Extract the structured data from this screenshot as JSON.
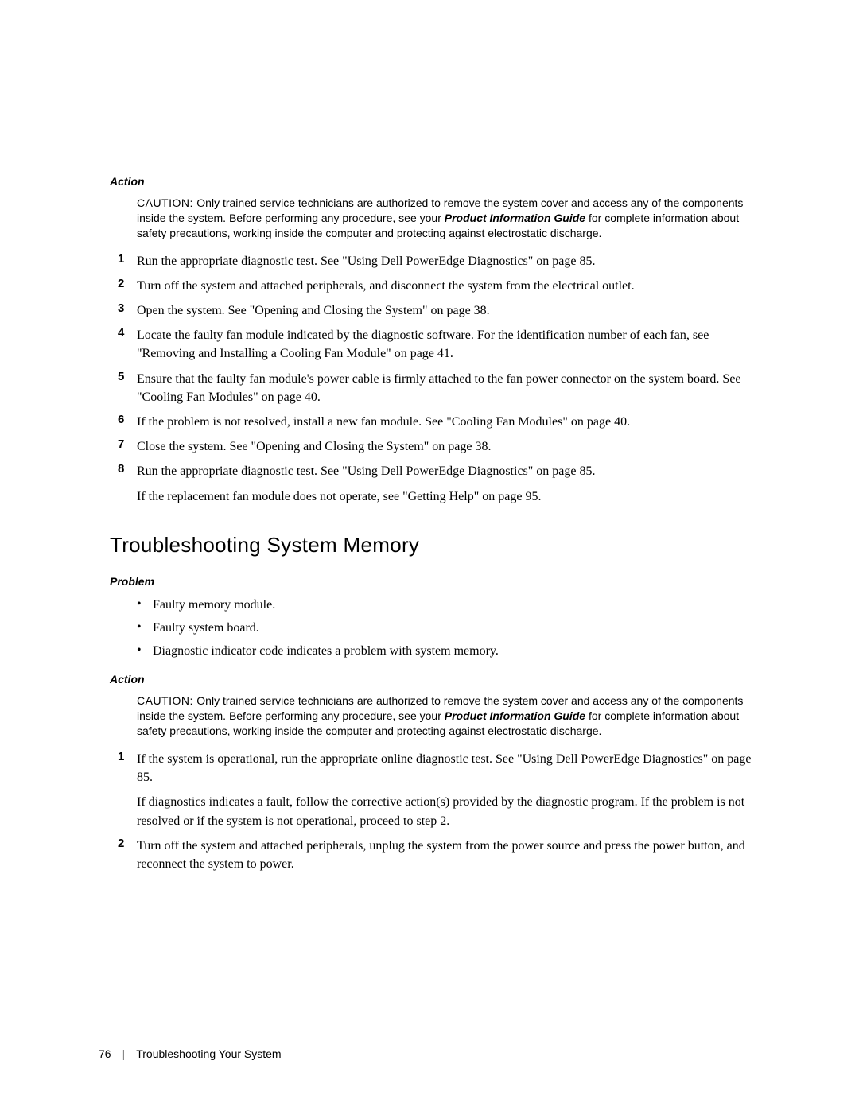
{
  "section1": {
    "label": "Action",
    "caution": {
      "prefix": "CAUTION: ",
      "text_a": "Only trained service technicians are authorized to remove the system cover and access any of the components inside the system. Before performing any procedure, see your ",
      "pig": "Product Information Guide",
      "text_b": " for complete information about safety precautions, working inside the computer and protecting against electrostatic discharge."
    },
    "steps": [
      {
        "n": "1",
        "t": "Run the appropriate diagnostic test. See \"Using Dell PowerEdge Diagnostics\" on page 85."
      },
      {
        "n": "2",
        "t": "Turn off the system and attached peripherals, and disconnect the system from the electrical outlet."
      },
      {
        "n": "3",
        "t": "Open the system. See \"Opening and Closing the System\" on page 38."
      },
      {
        "n": "4",
        "t": "Locate the faulty fan module indicated by the diagnostic software. For the identification number of each fan, see \"Removing and Installing a Cooling Fan Module\" on page 41."
      },
      {
        "n": "5",
        "t": "Ensure that the faulty fan module's power cable is firmly attached to the fan power connector on the system board. See \"Cooling Fan Modules\" on page 40."
      },
      {
        "n": "6",
        "t": "If the problem is not resolved, install a new fan module. See \"Cooling Fan Modules\" on page 40."
      },
      {
        "n": "7",
        "t": "Close the system. See \"Opening and Closing the System\" on page 38."
      },
      {
        "n": "8",
        "t": "Run the appropriate diagnostic test. See \"Using Dell PowerEdge Diagnostics\" on page 85."
      }
    ],
    "step8_follow": "If the replacement fan module does not operate, see \"Getting Help\" on page 95."
  },
  "section2": {
    "heading": "Troubleshooting System Memory",
    "problem_label": "Problem",
    "problems": [
      "Faulty memory module.",
      "Faulty system board.",
      "Diagnostic indicator code indicates a problem with system memory."
    ],
    "action_label": "Action",
    "caution": {
      "prefix": "CAUTION: ",
      "text_a": "Only trained service technicians are authorized to remove the system cover and access any of the components inside the system. Before performing any procedure, see your ",
      "pig": "Product Information Guide",
      "text_b": " for complete information about safety precautions, working inside the computer and protecting against electrostatic discharge."
    },
    "steps": [
      {
        "n": "1",
        "t": "If the system is operational, run the appropriate online diagnostic test. See \"Using Dell PowerEdge Diagnostics\" on page 85."
      },
      {
        "n": "2",
        "t": "Turn off the system and attached peripherals, unplug the system from the power source and press the power button, and reconnect the system to power."
      }
    ],
    "step1_follow": "If diagnostics indicates a fault, follow the corrective action(s) provided by the diagnostic program. If the problem is not resolved or if the system is not operational, proceed to step 2."
  },
  "footer": {
    "page_num": "76",
    "divider": "|",
    "title": "Troubleshooting Your System"
  }
}
